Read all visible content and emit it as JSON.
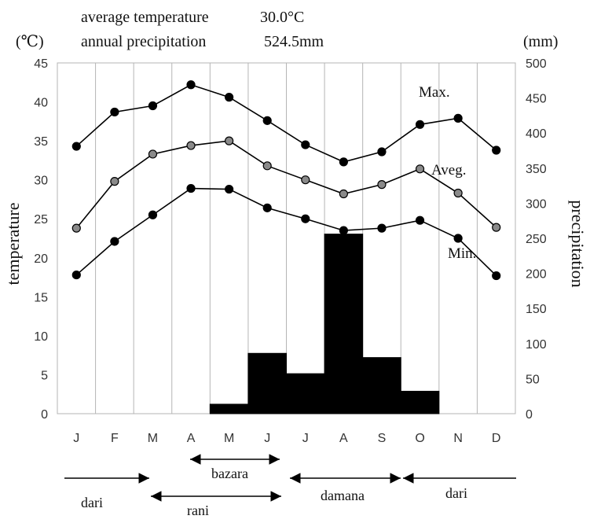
{
  "header": {
    "avg_label": "average temperature",
    "avg_value": "30.0°C",
    "precip_label": "annual precipitation",
    "precip_value": "524.5mm"
  },
  "chart_data": {
    "type": "line",
    "categories": [
      "J",
      "F",
      "M",
      "A",
      "M",
      "J",
      "J",
      "A",
      "S",
      "O",
      "N",
      "D"
    ],
    "left_axis": {
      "label": "temperature",
      "unit": "(℃)",
      "range": [
        0,
        45
      ],
      "ticks": [
        0,
        5,
        10,
        15,
        20,
        25,
        30,
        35,
        40,
        45
      ]
    },
    "right_axis": {
      "label": "precipitation",
      "unit": "(mm)",
      "range": [
        0,
        500
      ],
      "ticks": [
        0,
        50,
        100,
        150,
        200,
        250,
        300,
        350,
        400,
        450,
        500
      ]
    },
    "grid": "vertical",
    "series": [
      {
        "name": "Max.",
        "kind": "line",
        "axis": "left",
        "marker_color": "#000000",
        "values": [
          34.3,
          38.7,
          39.5,
          42.2,
          40.6,
          37.6,
          34.5,
          32.3,
          33.6,
          37.1,
          37.9,
          33.8
        ]
      },
      {
        "name": "Aveg.",
        "kind": "line",
        "axis": "left",
        "marker_color": "#8a8a8a",
        "values": [
          23.8,
          29.8,
          33.3,
          34.4,
          35.0,
          31.8,
          30.0,
          28.2,
          29.4,
          31.4,
          28.3,
          23.9
        ]
      },
      {
        "name": "Min.",
        "kind": "line",
        "axis": "left",
        "marker_color": "#000000",
        "values": [
          17.8,
          22.1,
          25.5,
          28.9,
          28.8,
          26.4,
          25.0,
          23.5,
          23.8,
          24.8,
          22.5,
          17.7
        ]
      },
      {
        "name": "",
        "kind": "bar",
        "axis": "right",
        "color": "#000000",
        "values": [
          0,
          0,
          0,
          0,
          13.5,
          86,
          57,
          256,
          80,
          32,
          0,
          0
        ]
      }
    ],
    "seasons": [
      {
        "label": "bazara",
        "from": "A",
        "to": "J",
        "arrows": "both"
      },
      {
        "label": "dari",
        "from": "start",
        "to": "M",
        "arrows": "end"
      },
      {
        "label": "rani",
        "from": "M",
        "to": "J",
        "arrows": "both"
      },
      {
        "label": "damana",
        "from": "J",
        "to": "O",
        "arrows": "both"
      },
      {
        "label": "dari",
        "from": "O",
        "to": "end",
        "arrows": "start"
      }
    ]
  }
}
